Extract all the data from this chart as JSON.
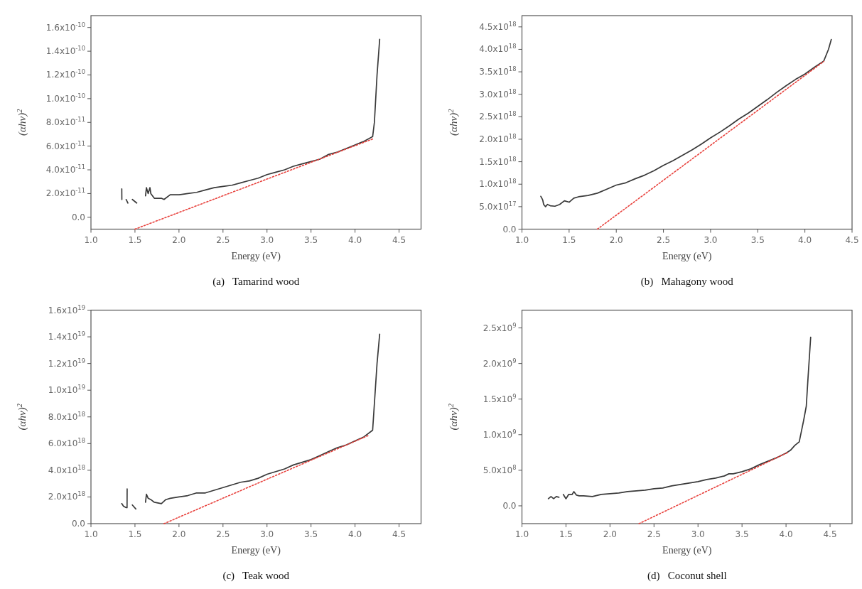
{
  "chart_data": [
    {
      "type": "line",
      "title": "(a)   Tamarind wood",
      "xlabel": "Energy (eV)",
      "ylabel": "(αhν)$^{2}$",
      "xlim": [
        1.0,
        4.75
      ],
      "ylim": [
        -1e-11,
        1.7e-10
      ],
      "xticks": [
        {
          "value": 1.0,
          "label": "1.0"
        },
        {
          "value": 1.5,
          "label": "1.5"
        },
        {
          "value": 2.0,
          "label": "2.0"
        },
        {
          "value": 2.5,
          "label": "2.5"
        },
        {
          "value": 3.0,
          "label": "3.0"
        },
        {
          "value": 3.5,
          "label": "3.5"
        },
        {
          "value": 4.0,
          "label": "4.0"
        },
        {
          "value": 4.5,
          "label": "4.5"
        }
      ],
      "yticks": [
        {
          "value": 0,
          "label": "0.0"
        },
        {
          "value": 2e-11,
          "label": "2.0x10$^{-11}$"
        },
        {
          "value": 4e-11,
          "label": "4.0x10$^{-11}$"
        },
        {
          "value": 6e-11,
          "label": "6.0x10$^{-11}$"
        },
        {
          "value": 8e-11,
          "label": "8.0x10$^{-11}$"
        },
        {
          "value": 1e-10,
          "label": "1.0x10$^{-10}$"
        },
        {
          "value": 1.2e-10,
          "label": "1.2x10$^{-10}$"
        },
        {
          "value": 1.4e-10,
          "label": "1.4x10$^{-10}$"
        },
        {
          "value": 1.6e-10,
          "label": "1.6x10$^{-10}$"
        }
      ],
      "series": [
        {
          "color": "#3a3a3a",
          "x": [
            1.35,
            1.351,
            1.38,
            1.4,
            1.42,
            1.45,
            1.47,
            1.52,
            1.56,
            1.62,
            1.63,
            1.65,
            1.67,
            1.68,
            1.72,
            1.8,
            1.83,
            1.9,
            2.0,
            2.1,
            2.2,
            2.3,
            2.4,
            2.5,
            2.6,
            2.7,
            2.8,
            2.9,
            3.0,
            3.1,
            3.2,
            3.3,
            3.4,
            3.5,
            3.6,
            3.7,
            3.8,
            3.9,
            4.0,
            4.1,
            4.2,
            4.22,
            4.25,
            4.28
          ],
          "values": [
            2.4e-11,
            1.5e-11,
            null,
            1.5e-11,
            1.2e-11,
            null,
            1.5e-11,
            1.2e-11,
            null,
            1.8e-11,
            2.5e-11,
            2e-11,
            2.5e-11,
            2e-11,
            1.6e-11,
            1.6e-11,
            1.5e-11,
            1.9e-11,
            1.9e-11,
            2e-11,
            2.1e-11,
            2.3e-11,
            2.5e-11,
            2.6e-11,
            2.7e-11,
            2.9e-11,
            3.1e-11,
            3.3e-11,
            3.6e-11,
            3.8e-11,
            4e-11,
            4.3e-11,
            4.5e-11,
            4.7e-11,
            4.9e-11,
            5.3e-11,
            5.5e-11,
            5.8e-11,
            6.1e-11,
            6.4e-11,
            6.8e-11,
            8e-11,
            1.2e-10,
            1.5e-10
          ]
        },
        {
          "color": "#e8413c",
          "line_style": "dotted",
          "x": [
            1.5,
            4.2
          ],
          "values": [
            -1e-11,
            6.6e-11
          ]
        }
      ]
    },
    {
      "type": "line",
      "title": "(b)   Mahagony wood",
      "xlabel": "Energy (eV)",
      "ylabel": "(αhν)$^{2}$",
      "xlim": [
        1.0,
        4.5
      ],
      "ylim": [
        0,
        4.75e+18
      ],
      "xticks": [
        {
          "value": 1.0,
          "label": "1.0"
        },
        {
          "value": 1.5,
          "label": "1.5"
        },
        {
          "value": 2.0,
          "label": "2.0"
        },
        {
          "value": 2.5,
          "label": "2.5"
        },
        {
          "value": 3.0,
          "label": "3.0"
        },
        {
          "value": 3.5,
          "label": "3.5"
        },
        {
          "value": 4.0,
          "label": "4.0"
        },
        {
          "value": 4.5,
          "label": "4.5"
        }
      ],
      "yticks": [
        {
          "value": 0,
          "label": "0.0"
        },
        {
          "value": 5e+17,
          "label": "5.0x10$^{17}$"
        },
        {
          "value": 1e+18,
          "label": "1.0x10$^{18}$"
        },
        {
          "value": 1.5e+18,
          "label": "1.5x10$^{18}$"
        },
        {
          "value": 2e+18,
          "label": "2.0x10$^{18}$"
        },
        {
          "value": 2.5e+18,
          "label": "2.5x10$^{18}$"
        },
        {
          "value": 3e+18,
          "label": "3.0x10$^{18}$"
        },
        {
          "value": 3.5e+18,
          "label": "3.5x10$^{18}$"
        },
        {
          "value": 4e+18,
          "label": "4.0x10$^{18}$"
        },
        {
          "value": 4.5e+18,
          "label": "4.5x10$^{18}$"
        }
      ],
      "series": [
        {
          "color": "#3a3a3a",
          "x": [
            1.2,
            1.22,
            1.23,
            1.25,
            1.27,
            1.3,
            1.35,
            1.4,
            1.45,
            1.5,
            1.55,
            1.6,
            1.7,
            1.8,
            1.9,
            2.0,
            2.1,
            2.2,
            2.3,
            2.4,
            2.5,
            2.6,
            2.7,
            2.8,
            2.9,
            3.0,
            3.1,
            3.2,
            3.3,
            3.4,
            3.5,
            3.6,
            3.7,
            3.8,
            3.9,
            4.0,
            4.1,
            4.2,
            4.25,
            4.28
          ],
          "values": [
            7.3e+17,
            6.5e+17,
            5.5e+17,
            5e+17,
            5.5e+17,
            5.2e+17,
            5.1e+17,
            5.5e+17,
            6.3e+17,
            6e+17,
            6.9e+17,
            7.2e+17,
            7.5e+17,
            8e+17,
            8.9e+17,
            9.8e+17,
            1.03e+18,
            1.12e+18,
            1.2e+18,
            1.3e+18,
            1.42e+18,
            1.52e+18,
            1.64e+18,
            1.76e+18,
            1.89e+18,
            2.03e+18,
            2.16e+18,
            2.3e+18,
            2.45e+18,
            2.58e+18,
            2.73e+18,
            2.88e+18,
            3.04e+18,
            3.19e+18,
            3.33e+18,
            3.45e+18,
            3.6e+18,
            3.74e+18,
            4e+18,
            4.22e+18
          ]
        },
        {
          "color": "#e8413c",
          "line_style": "dotted",
          "x": [
            1.8,
            4.2
          ],
          "values": [
            0,
            3.73e+18
          ]
        }
      ]
    },
    {
      "type": "line",
      "title": "(c)   Teak wood",
      "xlabel": "Energy (eV)",
      "ylabel": "(αhν)$^{2}$",
      "xlim": [
        1.0,
        4.75
      ],
      "ylim": [
        0,
        1.6e+19
      ],
      "xticks": [
        {
          "value": 1.0,
          "label": "1.0"
        },
        {
          "value": 1.5,
          "label": "1.5"
        },
        {
          "value": 2.0,
          "label": "2.0"
        },
        {
          "value": 2.5,
          "label": "2.5"
        },
        {
          "value": 3.0,
          "label": "3.0"
        },
        {
          "value": 3.5,
          "label": "3.5"
        },
        {
          "value": 4.0,
          "label": "4.0"
        },
        {
          "value": 4.5,
          "label": "4.5"
        }
      ],
      "yticks": [
        {
          "value": 0,
          "label": "0.0"
        },
        {
          "value": 2e+18,
          "label": "2.0x10$^{18}$"
        },
        {
          "value": 4e+18,
          "label": "4.0x10$^{18}$"
        },
        {
          "value": 6e+18,
          "label": "6.0x10$^{18}$"
        },
        {
          "value": 8e+18,
          "label": "8.0x10$^{18}$"
        },
        {
          "value": 1e+19,
          "label": "1.0x10$^{19}$"
        },
        {
          "value": 1.2e+19,
          "label": "1.2x10$^{19}$"
        },
        {
          "value": 1.4e+19,
          "label": "1.4x10$^{19}$"
        },
        {
          "value": 1.6e+19,
          "label": "1.6x10$^{19}$"
        }
      ],
      "series": [
        {
          "color": "#3a3a3a",
          "x": [
            1.35,
            1.37,
            1.4,
            1.41,
            1.411,
            1.45,
            1.47,
            1.51,
            1.56,
            1.62,
            1.63,
            1.65,
            1.68,
            1.72,
            1.8,
            1.85,
            1.9,
            2.0,
            2.1,
            2.2,
            2.3,
            2.4,
            2.5,
            2.6,
            2.7,
            2.8,
            2.9,
            3.0,
            3.1,
            3.2,
            3.3,
            3.4,
            3.5,
            3.6,
            3.7,
            3.8,
            3.9,
            4.0,
            4.1,
            4.2,
            4.22,
            4.25,
            4.28
          ],
          "values": [
            1.5e+18,
            1.3e+18,
            1.2e+18,
            1.2e+18,
            2.6e+18,
            null,
            1.4e+18,
            1.1e+18,
            null,
            1.6e+18,
            2.2e+18,
            1.9e+18,
            1.8e+18,
            1.6e+18,
            1.5e+18,
            1.8e+18,
            1.9e+18,
            2e+18,
            2.1e+18,
            2.3e+18,
            2.3e+18,
            2.5e+18,
            2.7e+18,
            2.9e+18,
            3.1e+18,
            3.2e+18,
            3.4e+18,
            3.7e+18,
            3.9e+18,
            4.1e+18,
            4.4e+18,
            4.6e+18,
            4.8e+18,
            5.1e+18,
            5.4e+18,
            5.7e+18,
            5.9e+18,
            6.2e+18,
            6.5e+18,
            7e+18,
            9e+18,
            1.2e+19,
            1.42e+19
          ]
        },
        {
          "color": "#e8413c",
          "line_style": "dotted",
          "x": [
            1.83,
            4.15
          ],
          "values": [
            0,
            6.6e+18
          ]
        }
      ]
    },
    {
      "type": "line",
      "title": "(d)   Coconut shell",
      "xlabel": "Energy (eV)",
      "ylabel": "(αhν)$^{2}$",
      "xlim": [
        1.0,
        4.75
      ],
      "ylim": [
        -250000000.0,
        2750000000.0
      ],
      "xticks": [
        {
          "value": 1.0,
          "label": "1.0"
        },
        {
          "value": 1.5,
          "label": "1.5"
        },
        {
          "value": 2.0,
          "label": "2.0"
        },
        {
          "value": 2.5,
          "label": "2.5"
        },
        {
          "value": 3.0,
          "label": "3.0"
        },
        {
          "value": 3.5,
          "label": "3.5"
        },
        {
          "value": 4.0,
          "label": "4.0"
        },
        {
          "value": 4.5,
          "label": "4.5"
        }
      ],
      "yticks": [
        {
          "value": 0,
          "label": "0.0"
        },
        {
          "value": 500000000.0,
          "label": "5.0x10$^{8}$"
        },
        {
          "value": 1000000000.0,
          "label": "1.0x10$^{9}$"
        },
        {
          "value": 1500000000.0,
          "label": "1.5x10$^{9}$"
        },
        {
          "value": 2000000000.0,
          "label": "2.0x10$^{9}$"
        },
        {
          "value": 2500000000.0,
          "label": "2.5x10$^{9}$"
        }
      ],
      "series": [
        {
          "color": "#3a3a3a",
          "x": [
            1.47,
            1.5,
            1.53,
            1.57,
            1.59,
            1.62,
            1.65,
            1.7,
            1.8,
            1.9,
            2.0,
            2.1,
            2.2,
            2.3,
            2.4,
            2.5,
            2.6,
            2.7,
            2.8,
            2.9,
            3.0,
            3.1,
            3.2,
            3.3,
            3.35,
            3.4,
            3.5,
            3.6,
            3.7,
            3.8,
            3.9,
            4.0,
            4.05,
            4.1,
            4.15,
            4.2,
            4.23,
            4.25,
            4.28
          ],
          "values": [
            160000000.0,
            100000000.0,
            160000000.0,
            160000000.0,
            200000000.0,
            150000000.0,
            140000000.0,
            140000000.0,
            130000000.0,
            160000000.0,
            170000000.0,
            180000000.0,
            200000000.0,
            210000000.0,
            220000000.0,
            240000000.0,
            250000000.0,
            280000000.0,
            300000000.0,
            320000000.0,
            340000000.0,
            370000000.0,
            390000000.0,
            420000000.0,
            450000000.0,
            450000000.0,
            480000000.0,
            520000000.0,
            580000000.0,
            630000000.0,
            680000000.0,
            740000000.0,
            780000000.0,
            850000000.0,
            900000000.0,
            1200000000.0,
            1400000000.0,
            1800000000.0,
            2370000000.0
          ]
        },
        {
          "color": "#e8413c",
          "line_style": "dotted",
          "x": [
            2.33,
            4.02
          ],
          "values": [
            -250000000.0,
            750000000.0
          ]
        },
        {
          "color": "#3a3a3a",
          "x": [
            1.3,
            1.33,
            1.36,
            1.39,
            1.42
          ],
          "values": [
            100000000.0,
            130000000.0,
            100000000.0,
            130000000.0,
            120000000.0
          ]
        }
      ]
    }
  ]
}
